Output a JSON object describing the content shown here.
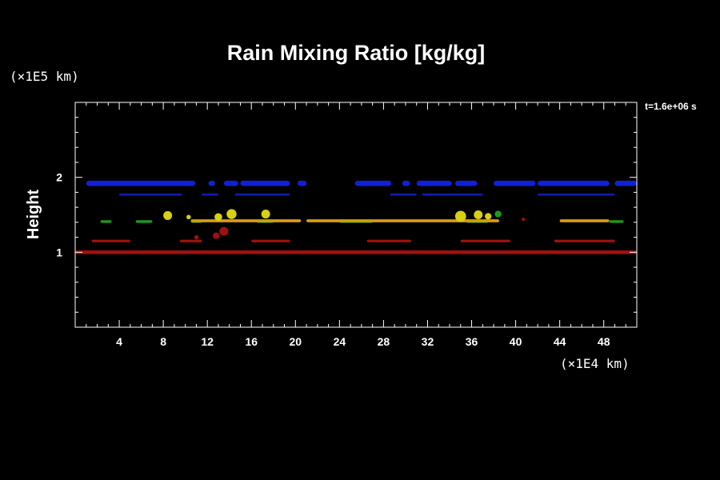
{
  "chart_data": {
    "type": "heatmap",
    "title": "Rain Mixing Ratio [kg/kg]",
    "ylabel": "Height",
    "y_unit_label": "(×1E5 km)",
    "x_unit_label": "(×1E4 km)",
    "annotation": "t=1.6e+06 s",
    "xlim": [
      0,
      51
    ],
    "ylim": [
      0,
      3
    ],
    "x_ticks": [
      4,
      8,
      12,
      16,
      20,
      24,
      28,
      32,
      36,
      40,
      44,
      48
    ],
    "x_tick_labels": [
      "4",
      "8",
      "12",
      "16",
      "20",
      "24",
      "28",
      "32",
      "36",
      "40",
      "44",
      "48"
    ],
    "y_ticks": [
      1,
      2
    ],
    "y_tick_labels": [
      "1",
      "2"
    ],
    "colors": {
      "background": "#000000",
      "axes": "#ffffff",
      "blue": "#1020d8",
      "dark_blue": "#0c1ab0",
      "green": "#1c9a1c",
      "orange": "#d89a10",
      "yellow": "#d8d010",
      "red": "#a01010"
    },
    "bands": [
      {
        "color": "blue",
        "y_center": 1.92,
        "thickness": 0.07,
        "segments": [
          [
            1.0,
            10.9
          ],
          [
            12.1,
            12.7
          ],
          [
            13.5,
            14.8
          ],
          [
            15.0,
            19.5
          ],
          [
            20.2,
            21.0
          ],
          [
            25.4,
            28.7
          ],
          [
            29.7,
            30.4
          ],
          [
            31.0,
            34.2
          ],
          [
            34.5,
            36.5
          ],
          [
            38.0,
            41.8
          ],
          [
            42.0,
            48.5
          ],
          [
            49.0,
            51.0
          ]
        ]
      },
      {
        "color": "dark_blue",
        "y_center": 1.77,
        "thickness": 0.03,
        "segments": [
          [
            4.0,
            9.7
          ],
          [
            11.5,
            13.0
          ],
          [
            14.5,
            19.5
          ],
          [
            28.6,
            31.0
          ],
          [
            31.5,
            37.0
          ],
          [
            42.0,
            49.0
          ]
        ]
      },
      {
        "color": "green",
        "y_center": 1.41,
        "thickness": 0.035,
        "segments": [
          [
            2.3,
            3.3
          ],
          [
            5.5,
            7.0
          ],
          [
            10.5,
            11.5
          ],
          [
            16.5,
            18.0
          ],
          [
            24.0,
            27.0
          ],
          [
            35.5,
            37.5
          ],
          [
            48.5,
            49.8
          ]
        ]
      },
      {
        "color": "orange",
        "y_center": 1.42,
        "thickness": 0.04,
        "segments": [
          [
            10.5,
            20.5
          ],
          [
            21.0,
            38.5
          ],
          [
            44.0,
            48.5
          ]
        ]
      },
      {
        "color": "red",
        "y_center": 1.15,
        "thickness": 0.035,
        "segments": [
          [
            1.5,
            5.0
          ],
          [
            9.5,
            11.5
          ],
          [
            16.0,
            19.5
          ],
          [
            26.5,
            30.5
          ],
          [
            35.0,
            39.5
          ],
          [
            43.5,
            49.0
          ]
        ]
      },
      {
        "color": "red",
        "y_center": 1.0,
        "thickness": 0.05,
        "segments": [
          [
            0.0,
            51.0
          ]
        ]
      }
    ],
    "blobs": [
      {
        "color": "yellow",
        "x": 8.4,
        "y": 1.49,
        "r": 0.4
      },
      {
        "color": "yellow",
        "x": 10.3,
        "y": 1.47,
        "r": 0.2
      },
      {
        "color": "yellow",
        "x": 13.0,
        "y": 1.47,
        "r": 0.35
      },
      {
        "color": "yellow",
        "x": 14.2,
        "y": 1.51,
        "r": 0.45
      },
      {
        "color": "yellow",
        "x": 17.3,
        "y": 1.51,
        "r": 0.4
      },
      {
        "color": "yellow",
        "x": 35.0,
        "y": 1.48,
        "r": 0.5
      },
      {
        "color": "yellow",
        "x": 36.6,
        "y": 1.5,
        "r": 0.4
      },
      {
        "color": "yellow",
        "x": 37.5,
        "y": 1.48,
        "r": 0.3
      },
      {
        "color": "green",
        "x": 38.4,
        "y": 1.51,
        "r": 0.3
      },
      {
        "color": "red",
        "x": 40.7,
        "y": 1.44,
        "r": 0.15
      },
      {
        "color": "red",
        "x": 13.5,
        "y": 1.28,
        "r": 0.4
      },
      {
        "color": "red",
        "x": 12.8,
        "y": 1.22,
        "r": 0.3
      },
      {
        "color": "red",
        "x": 11.0,
        "y": 1.2,
        "r": 0.2
      }
    ]
  }
}
